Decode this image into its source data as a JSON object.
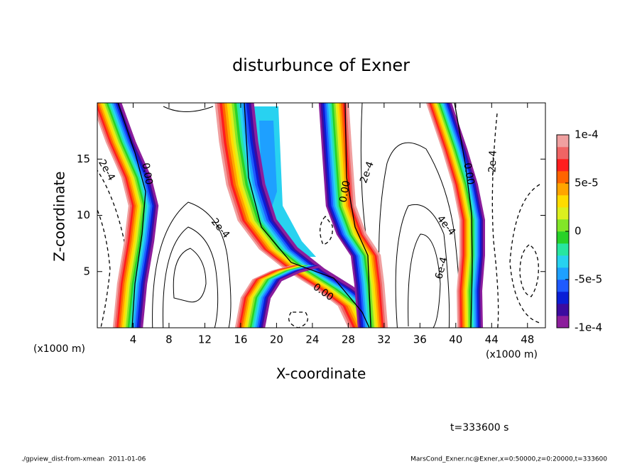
{
  "chart_data": {
    "type": "contour",
    "title": "disturbunce of Exner",
    "x_label": "X-coordinate",
    "y_label": "Z-coordinate",
    "x_unit": "(x1000 m)",
    "x_unit_right": "(x1000 m)",
    "xlim": [
      0,
      50
    ],
    "ylim": [
      0,
      20
    ],
    "xticks": [
      4,
      8,
      12,
      16,
      20,
      24,
      28,
      32,
      36,
      40,
      44,
      48
    ],
    "yticks": [
      5,
      10,
      15
    ],
    "colorbar": {
      "lim": [
        -0.0001,
        0.0001
      ],
      "ticks": [
        {
          "value": -0.0001,
          "label": "-1e-4"
        },
        {
          "value": -5e-05,
          "label": "-5e-5"
        },
        0,
        {
          "value": 5e-05,
          "label": "5e-5"
        },
        {
          "value": 0.0001,
          "label": "1e-4"
        }
      ],
      "colors": [
        "#8c1e9c",
        "#3c0ca0",
        "#0a1ed6",
        "#1e5aff",
        "#1ea0ff",
        "#28d2f0",
        "#28e6a0",
        "#28d228",
        "#82e628",
        "#dcf01e",
        "#ffdc00",
        "#ffa500",
        "#ff6400",
        "#ff1e1e",
        "#f06464",
        "#f0a0a0"
      ]
    },
    "contour_labels": [
      "2e-4",
      "0.00",
      "2e-4",
      "0.00",
      "2e-4",
      "4e-4",
      "6e-4",
      "0.00",
      "0.00",
      "-2e-4"
    ],
    "time_label": "t=333600 s"
  },
  "footer": {
    "left": "./gpview_dist-from-xmean  2011-01-06",
    "right": "MarsCond_Exner.nc@Exner,x=0:50000,z=0:20000,t=333600"
  }
}
